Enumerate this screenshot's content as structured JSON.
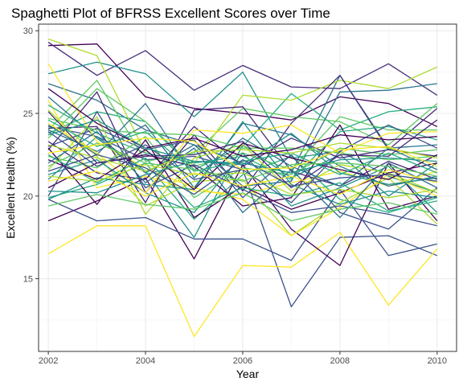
{
  "chart_data": {
    "type": "line",
    "title": "Spaghetti Plot of BFRSS Excellent Scores over Time",
    "xlabel": "Year",
    "ylabel": "Excellent Health (%)",
    "x": [
      2002,
      2003,
      2004,
      2005,
      2006,
      2007,
      2008,
      2009,
      2010
    ],
    "xlim": [
      2001.8,
      2010.4
    ],
    "ylim": [
      10.6,
      30.4
    ],
    "x_ticks": [
      2002,
      2004,
      2006,
      2008,
      2010
    ],
    "y_ticks": [
      15,
      20,
      25,
      30
    ],
    "grid": true,
    "legend": "none",
    "series": [
      {
        "color": "#440154",
        "values": [
          29.1,
          29.2,
          26.0,
          25.3,
          25.0,
          24.6,
          26.0,
          25.6,
          24.2
        ]
      },
      {
        "color": "#472c7a",
        "values": [
          29.3,
          27.3,
          28.8,
          26.4,
          27.9,
          26.6,
          26.5,
          28.0,
          26.1
        ]
      },
      {
        "color": "#3b528b",
        "values": [
          24.2,
          23.6,
          22.2,
          22.4,
          21.6,
          13.3,
          17.5,
          17.6,
          16.4
        ]
      },
      {
        "color": "#2c728e",
        "values": [
          26.8,
          25.8,
          24.0,
          23.1,
          22.0,
          21.4,
          27.3,
          22.9,
          23.1
        ]
      },
      {
        "color": "#21918c",
        "values": [
          27.4,
          28.1,
          27.4,
          24.8,
          27.5,
          22.3,
          22.7,
          21.2,
          20.2
        ]
      },
      {
        "color": "#28ae80",
        "values": [
          23.8,
          25.1,
          24.5,
          21.6,
          23.0,
          26.2,
          24.0,
          25.1,
          25.4
        ]
      },
      {
        "color": "#5ec962",
        "values": [
          24.0,
          27.0,
          22.1,
          22.6,
          25.3,
          24.8,
          24.5,
          23.1,
          25.6
        ]
      },
      {
        "color": "#addc30",
        "values": [
          29.5,
          28.5,
          22.6,
          22.0,
          26.1,
          25.8,
          27.0,
          26.5,
          27.8
        ]
      },
      {
        "color": "#fde725",
        "values": [
          16.5,
          18.2,
          18.2,
          11.5,
          15.8,
          15.7,
          17.8,
          13.4,
          16.8
        ]
      },
      {
        "color": "#440154",
        "values": [
          18.5,
          19.7,
          21.1,
          16.2,
          21.9,
          18.0,
          15.8,
          22.0,
          18.5
        ]
      },
      {
        "color": "#472c7a",
        "values": [
          22.8,
          26.3,
          20.2,
          23.7,
          20.3,
          24.4,
          27.3,
          22.8,
          25.3
        ]
      },
      {
        "color": "#3b528b",
        "values": [
          19.8,
          18.5,
          18.7,
          17.4,
          17.4,
          16.1,
          20.4,
          16.4,
          17.1
        ]
      },
      {
        "color": "#2c728e",
        "values": [
          26.0,
          23.5,
          21.4,
          23.1,
          20.6,
          20.9,
          26.3,
          26.4,
          26.8
        ]
      },
      {
        "color": "#21918c",
        "values": [
          21.0,
          23.6,
          21.5,
          17.5,
          23.1,
          21.1,
          22.5,
          20.0,
          22.0
        ]
      },
      {
        "color": "#28ae80",
        "values": [
          19.9,
          20.7,
          22.0,
          18.6,
          21.3,
          22.4,
          19.8,
          19.0,
          19.9
        ]
      },
      {
        "color": "#5ec962",
        "values": [
          23.5,
          26.5,
          24.5,
          21.8,
          22.6,
          21.6,
          24.8,
          24.0,
          24.0
        ]
      },
      {
        "color": "#addc30",
        "values": [
          25.2,
          22.4,
          19.4,
          20.9,
          21.0,
          17.6,
          19.6,
          21.1,
          18.3
        ]
      },
      {
        "color": "#fde725",
        "values": [
          25.8,
          20.5,
          21.2,
          20.3,
          20.1,
          20.8,
          21.5,
          20.6,
          21.5
        ]
      },
      {
        "color": "#440154",
        "values": [
          20.5,
          22.0,
          22.5,
          21.8,
          19.4,
          19.9,
          24.3,
          19.2,
          20.0
        ]
      },
      {
        "color": "#472c7a",
        "values": [
          24.1,
          24.2,
          19.6,
          25.2,
          25.4,
          21.5,
          20.6,
          22.1,
          21.0
        ]
      },
      {
        "color": "#3b528b",
        "values": [
          23.0,
          24.1,
          22.8,
          23.4,
          19.9,
          22.5,
          19.0,
          18.0,
          20.5
        ]
      },
      {
        "color": "#2c728e",
        "values": [
          24.0,
          22.7,
          24.3,
          20.5,
          24.4,
          23.7,
          21.8,
          20.6,
          21.2
        ]
      },
      {
        "color": "#21918c",
        "values": [
          21.3,
          22.2,
          20.2,
          19.0,
          22.6,
          19.4,
          20.5,
          21.8,
          19.0
        ]
      },
      {
        "color": "#28ae80",
        "values": [
          25.5,
          23.8,
          22.6,
          22.0,
          22.4,
          21.0,
          23.9,
          24.2,
          23.4
        ]
      },
      {
        "color": "#5ec962",
        "values": [
          22.4,
          21.7,
          23.6,
          19.9,
          21.7,
          21.3,
          22.9,
          22.5,
          22.8
        ]
      },
      {
        "color": "#addc30",
        "values": [
          21.6,
          24.8,
          18.9,
          22.3,
          23.1,
          20.3,
          21.9,
          21.4,
          20.2
        ]
      },
      {
        "color": "#fde725",
        "values": [
          28.0,
          23.3,
          21.7,
          20.5,
          19.8,
          17.6,
          19.3,
          21.3,
          20.0
        ]
      },
      {
        "color": "#440154",
        "values": [
          22.9,
          19.5,
          23.4,
          18.7,
          20.6,
          19.2,
          20.2,
          21.4,
          22.0
        ]
      },
      {
        "color": "#472c7a",
        "values": [
          23.3,
          21.4,
          21.0,
          24.2,
          21.8,
          23.5,
          22.3,
          22.8,
          22.4
        ]
      },
      {
        "color": "#3b528b",
        "values": [
          20.0,
          25.1,
          20.5,
          21.9,
          20.4,
          19.0,
          19.4,
          18.9,
          18.2
        ]
      },
      {
        "color": "#2c728e",
        "values": [
          24.3,
          22.5,
          25.6,
          21.1,
          23.5,
          21.8,
          20.6,
          22.9,
          21.6
        ]
      },
      {
        "color": "#21918c",
        "values": [
          19.8,
          21.1,
          20.7,
          20.4,
          24.5,
          20.7,
          19.5,
          20.3,
          19.9
        ]
      },
      {
        "color": "#28ae80",
        "values": [
          22.5,
          20.8,
          22.3,
          19.3,
          20.5,
          20.0,
          20.8,
          19.1,
          19.7
        ]
      },
      {
        "color": "#5ec962",
        "values": [
          24.7,
          24.0,
          23.8,
          23.7,
          22.9,
          22.9,
          22.6,
          22.2,
          22.4
        ]
      },
      {
        "color": "#addc30",
        "values": [
          21.2,
          20.9,
          21.9,
          21.3,
          21.4,
          20.1,
          20.4,
          19.9,
          20.4
        ]
      },
      {
        "color": "#fde725",
        "values": [
          24.4,
          22.6,
          20.2,
          24.0,
          23.8,
          24.3,
          22.6,
          23.8,
          23.9
        ]
      },
      {
        "color": "#440154",
        "values": [
          22.2,
          21.0,
          22.8,
          20.4,
          23.2,
          22.3,
          21.6,
          21.0,
          22.5
        ]
      },
      {
        "color": "#472c7a",
        "values": [
          25.1,
          22.0,
          22.4,
          22.5,
          23.3,
          20.5,
          22.5,
          22.4,
          24.6
        ]
      },
      {
        "color": "#3b528b",
        "values": [
          23.9,
          21.8,
          23.1,
          21.0,
          21.6,
          19.6,
          22.7,
          24.3,
          22.9
        ]
      },
      {
        "color": "#2c728e",
        "values": [
          22.0,
          23.9,
          20.8,
          22.9,
          19.0,
          21.6,
          18.7,
          22.0,
          20.5
        ]
      },
      {
        "color": "#21918c",
        "values": [
          20.3,
          20.2,
          21.3,
          22.1,
          21.9,
          23.8,
          21.4,
          20.7,
          21.1
        ]
      },
      {
        "color": "#28ae80",
        "values": [
          24.6,
          23.0,
          23.9,
          21.5,
          22.1,
          22.6,
          21.3,
          22.6,
          21.4
        ]
      },
      {
        "color": "#5ec962",
        "values": [
          21.8,
          23.2,
          22.0,
          21.6,
          20.9,
          21.9,
          22.0,
          21.8,
          21.2
        ]
      },
      {
        "color": "#addc30",
        "values": [
          23.1,
          22.3,
          21.5,
          22.7,
          22.8,
          22.6,
          23.2,
          22.9,
          22.3
        ]
      },
      {
        "color": "#fde725",
        "values": [
          20.9,
          21.5,
          20.0,
          21.4,
          20.6,
          21.2,
          20.1,
          21.6,
          20.8
        ]
      },
      {
        "color": "#440154",
        "values": [
          26.5,
          24.4,
          22.9,
          23.5,
          22.4,
          22.8,
          23.7,
          23.4,
          23.6
        ]
      },
      {
        "color": "#3b528b",
        "values": [
          21.5,
          22.5,
          21.7,
          20.1,
          22.2,
          20.6,
          21.1,
          21.3,
          20.9
        ]
      },
      {
        "color": "#21918c",
        "values": [
          23.7,
          24.6,
          22.9,
          22.1,
          22.0,
          21.4,
          22.2,
          22.3,
          22.1
        ]
      },
      {
        "color": "#5ec962",
        "values": [
          19.4,
          20.1,
          19.5,
          19.2,
          20.2,
          18.5,
          19.2,
          19.6,
          18.9
        ]
      },
      {
        "color": "#fde725",
        "values": [
          22.6,
          23.1,
          23.5,
          23.3,
          21.6,
          21.7,
          22.8,
          23.0,
          21.8
        ]
      }
    ]
  }
}
